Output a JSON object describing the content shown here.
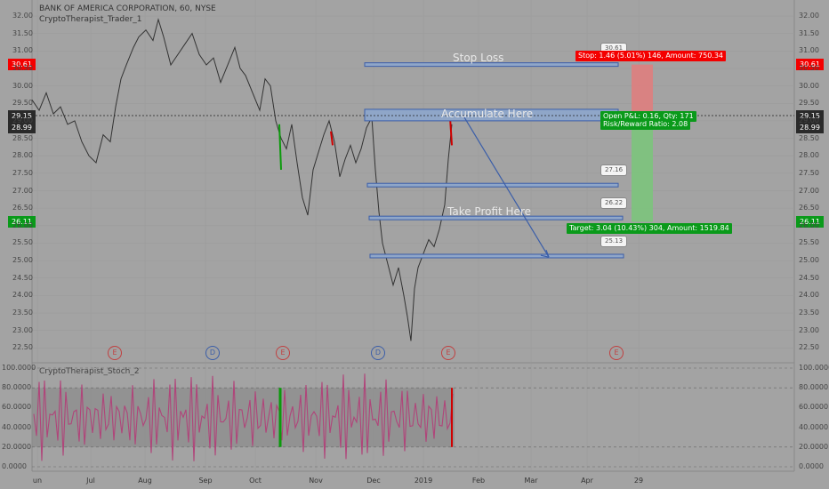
{
  "header": {
    "symbol_line": "BANK OF AMERICA CORPORATION, 60, NYSE",
    "indicator_line": "CryptoTherapist_Trader_1"
  },
  "oscillator": {
    "title": "CryptoTherapist_Stoch_2",
    "ticks": [
      "100.0000",
      "80.0000",
      "60.0000",
      "40.0000",
      "20.0000",
      "0.0000"
    ]
  },
  "price_axis": {
    "ticks": [
      "32.00",
      "31.50",
      "31.00",
      "30.50",
      "30.00",
      "29.50",
      "29.00",
      "28.50",
      "28.00",
      "27.50",
      "27.00",
      "26.50",
      "26.00",
      "25.50",
      "25.00",
      "24.50",
      "24.00",
      "23.50",
      "23.00",
      "22.50"
    ],
    "tags": {
      "stop": "30.61",
      "current": "29.15",
      "last": "28.99",
      "target": "26.11"
    }
  },
  "time_axis": {
    "labels": [
      "un",
      "Jul",
      "Aug",
      "Sep",
      "Oct",
      "Nov",
      "Dec",
      "2019",
      "Feb",
      "Mar",
      "Apr",
      "29"
    ]
  },
  "drawings": {
    "stop_loss": "Stop Loss",
    "accumulate": "Accumulate Here",
    "take_profit": "Take Profit Here"
  },
  "callouts": {
    "c1": "30.61",
    "c2": "27.16",
    "c3": "26.22",
    "c4": "25.13"
  },
  "position": {
    "stop_text": "Stop: 1.46 (5.01%) 146, Amount: 750.34",
    "open_text": "Open P&L: 0.16, Qty: 171",
    "rr_text": "Risk/Reward Ratio: 2.08",
    "target_text": "Target: 3.04 (10.43%) 304, Amount: 1519.84"
  },
  "events": [
    "E",
    "D",
    "E",
    "D",
    "E",
    "E"
  ],
  "colors": {
    "background": "#a3a3a3",
    "stop_red": "#f40000",
    "target_green": "#0a9a1a",
    "zone_blue": "#8fa6c8",
    "oscillator_pink": "#b0457a",
    "event_d": "#3b5ea8",
    "event_e": "#c04040"
  }
}
